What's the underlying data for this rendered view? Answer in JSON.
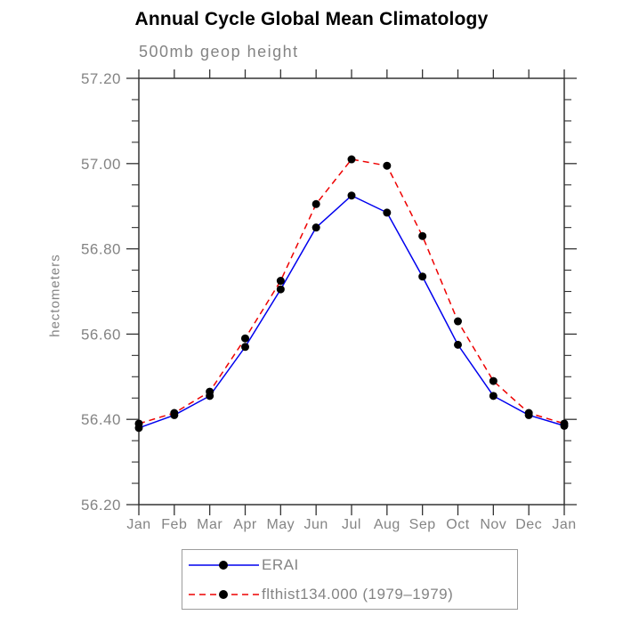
{
  "title": "Annual Cycle Global Mean Climatology",
  "subtitle": "500mb geop height",
  "y_axis_title": "hectometers",
  "colors": {
    "axis": "#333333",
    "gray_text": "#848484",
    "title_text": "#000000",
    "legend_border": "#9c9c9c",
    "marker": "#000000"
  },
  "chart_data": {
    "type": "line",
    "title": "Annual Cycle Global Mean Climatology",
    "subtitle": "500mb geop height",
    "ylabel": "hectometers",
    "xlabel": "",
    "categories": [
      "Jan",
      "Feb",
      "Mar",
      "Apr",
      "May",
      "Jun",
      "Jul",
      "Aug",
      "Sep",
      "Oct",
      "Nov",
      "Dec",
      "Jan"
    ],
    "ylim": [
      56.2,
      57.2
    ],
    "yticks": [
      56.2,
      56.4,
      56.6,
      56.8,
      57.0,
      57.2
    ],
    "ytick_minor_step": 0.05,
    "grid": false,
    "legend_position": "bottom",
    "series": [
      {
        "name": "ERAI",
        "color": "#0000ee",
        "dash": "solid",
        "marker": "black-dot",
        "values": [
          56.38,
          56.41,
          56.455,
          56.57,
          56.705,
          56.85,
          56.925,
          56.885,
          56.735,
          56.575,
          56.455,
          56.41,
          56.385
        ]
      },
      {
        "name": "flthist134.000 (1979–1979)",
        "color": "#ee0000",
        "dash": "dashed",
        "marker": "black-dot",
        "values": [
          56.39,
          56.415,
          56.465,
          56.59,
          56.725,
          56.905,
          57.01,
          56.995,
          56.83,
          56.63,
          56.49,
          56.415,
          56.39
        ]
      }
    ]
  }
}
